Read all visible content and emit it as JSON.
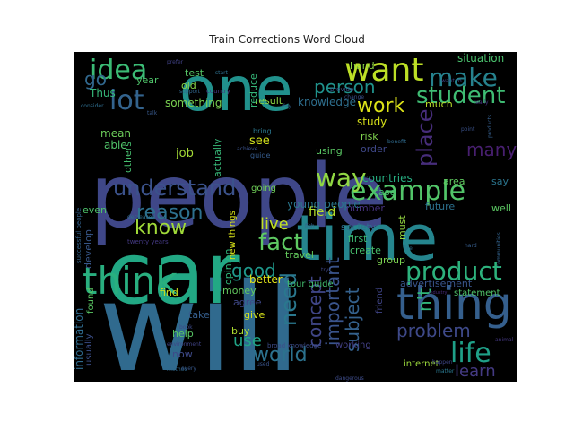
{
  "title": "Train Corrections Word Cloud",
  "chart_data": {
    "type": "wordcloud",
    "title": "Train Corrections Word Cloud",
    "words": [
      {
        "text": "people",
        "rank": 1.0,
        "color": "#3f4788"
      },
      {
        "text": "will",
        "rank": 0.98,
        "color": "#306a8e"
      },
      {
        "text": "car",
        "rank": 0.9,
        "color": "#22a884"
      },
      {
        "text": "time",
        "rank": 0.8,
        "color": "#25858e"
      },
      {
        "text": "one",
        "rank": 0.68,
        "color": "#21918c"
      },
      {
        "text": "thing",
        "rank": 0.5,
        "color": "#355f8d"
      },
      {
        "text": "think",
        "rank": 0.48,
        "color": "#29af7f"
      },
      {
        "text": "want",
        "rank": 0.42,
        "color": "#bddf26"
      },
      {
        "text": "idea",
        "rank": 0.38,
        "color": "#3bbb75"
      },
      {
        "text": "example",
        "rank": 0.38,
        "color": "#52c569"
      },
      {
        "text": "product",
        "rank": 0.38,
        "color": "#2db27d"
      },
      {
        "text": "make",
        "rank": 0.36,
        "color": "#26828e"
      },
      {
        "text": "student",
        "rank": 0.34,
        "color": "#3fbc73"
      },
      {
        "text": "lot",
        "rank": 0.34,
        "color": "#33638d"
      },
      {
        "text": "way",
        "rank": 0.34,
        "color": "#90d743"
      },
      {
        "text": "life",
        "rank": 0.34,
        "color": "#1fa088"
      },
      {
        "text": "understand",
        "rank": 0.32,
        "color": "#3b528b"
      },
      {
        "text": "fact",
        "rank": 0.32,
        "color": "#5ec962"
      },
      {
        "text": "place",
        "rank": 0.3,
        "color": "#472d7b"
      },
      {
        "text": "work",
        "rank": 0.3,
        "color": "#dde318"
      },
      {
        "text": "person",
        "rank": 0.3,
        "color": "#20928c"
      },
      {
        "text": "need",
        "rank": 0.3,
        "color": "#2a788e"
      },
      {
        "text": "problem",
        "rank": 0.28,
        "color": "#3e4989"
      },
      {
        "text": "know",
        "rank": 0.28,
        "color": "#a0da39"
      },
      {
        "text": "go",
        "rank": 0.26,
        "color": "#31688e"
      },
      {
        "text": "reason",
        "rank": 0.26,
        "color": "#2d708e"
      },
      {
        "text": "good",
        "rank": 0.26,
        "color": "#1f988b"
      },
      {
        "text": "concept",
        "rank": 0.26,
        "color": "#404688"
      },
      {
        "text": "important",
        "rank": 0.26,
        "color": "#3a548c"
      },
      {
        "text": "subject",
        "rank": 0.26,
        "color": "#34618d"
      },
      {
        "text": "learn",
        "rank": 0.26,
        "color": "#443a83"
      },
      {
        "text": "n't",
        "rank": 0.26,
        "color": "#32b67a"
      },
      {
        "text": "world",
        "rank": 0.26,
        "color": "#2c728e"
      },
      {
        "text": "use",
        "rank": 0.24,
        "color": "#20a486"
      },
      {
        "text": "live",
        "rank": 0.22,
        "color": "#c0df25"
      },
      {
        "text": "many",
        "rank": 0.22,
        "color": "#481f70"
      },
      {
        "text": "situation",
        "rank": 0.12,
        "color": "#4ac16d"
      },
      {
        "text": "field",
        "rank": 0.12,
        "color": "#b5de2b"
      },
      {
        "text": "advertisement",
        "rank": 0.12,
        "color": "#39558c"
      },
      {
        "text": "study",
        "rank": 0.12,
        "color": "#d8e219"
      },
      {
        "text": "better",
        "rank": 0.12,
        "color": "#e2e418"
      },
      {
        "text": "knowledge",
        "rank": 0.12,
        "color": "#2e6f8e"
      },
      {
        "text": "something",
        "rank": 0.12,
        "color": "#7ad151"
      },
      {
        "text": "countries",
        "rank": 0.12,
        "color": "#26ad81"
      },
      {
        "text": "young people",
        "rank": 0.12,
        "color": "#2a778e"
      },
      {
        "text": "information",
        "rank": 0.12,
        "color": "#2f6b8e"
      },
      {
        "text": "money",
        "rank": 0.1,
        "color": "#63cb5f"
      },
      {
        "text": "job",
        "rank": 0.1,
        "color": "#a5db36"
      },
      {
        "text": "see",
        "rank": 0.1,
        "color": "#d2e21b"
      },
      {
        "text": "mean",
        "rank": 0.1,
        "color": "#6ccd5a"
      },
      {
        "text": "able",
        "rank": 0.1,
        "color": "#50c46a"
      },
      {
        "text": "Thus",
        "rank": 0.1,
        "color": "#35b779"
      },
      {
        "text": "year",
        "rank": 0.1,
        "color": "#4fc46a"
      },
      {
        "text": "old",
        "rank": 0.1,
        "color": "#86d549"
      },
      {
        "text": "test",
        "rank": 0.1,
        "color": "#56c667"
      },
      {
        "text": "hand",
        "rank": 0.1,
        "color": "#8bd646"
      },
      {
        "text": "risk",
        "rank": 0.1,
        "color": "#7fd34e"
      },
      {
        "text": "much",
        "rank": 0.1,
        "color": "#b8de29"
      },
      {
        "text": "area",
        "rank": 0.1,
        "color": "#60ca60"
      },
      {
        "text": "well",
        "rank": 0.1,
        "color": "#5cc863"
      },
      {
        "text": "say",
        "rank": 0.1,
        "color": "#2b758e"
      },
      {
        "text": "case",
        "rank": 0.1,
        "color": "#44bf70"
      },
      {
        "text": "first",
        "rank": 0.1,
        "color": "#3dbc74"
      },
      {
        "text": "create",
        "rank": 0.1,
        "color": "#48c16e"
      },
      {
        "text": "group",
        "rank": 0.1,
        "color": "#7cd250"
      },
      {
        "text": "must",
        "rank": 0.1,
        "color": "#95d840"
      },
      {
        "text": "future",
        "rank": 0.1,
        "color": "#2c718e"
      },
      {
        "text": "number",
        "rank": 0.1,
        "color": "#46327e"
      },
      {
        "text": "society",
        "rank": 0.1,
        "color": "#2e6e8e"
      },
      {
        "text": "find",
        "rank": 0.1,
        "color": "#cde11d"
      },
      {
        "text": "help",
        "rank": 0.1,
        "color": "#58c765"
      },
      {
        "text": "take",
        "rank": 0.1,
        "color": "#355e8d"
      },
      {
        "text": "give",
        "rank": 0.1,
        "color": "#d5e21a"
      },
      {
        "text": "buy",
        "rank": 0.1,
        "color": "#addc30"
      },
      {
        "text": "now",
        "rank": 0.1,
        "color": "#3e4a89"
      },
      {
        "text": "even",
        "rank": 0.1,
        "color": "#4ec36b"
      },
      {
        "text": "develop",
        "rank": 0.1,
        "color": "#38588c"
      },
      {
        "text": "internet",
        "rank": 0.09,
        "color": "#9bd93c"
      },
      {
        "text": "result",
        "rank": 0.09,
        "color": "#8ed645"
      },
      {
        "text": "order",
        "rank": 0.09,
        "color": "#3f4889"
      },
      {
        "text": "travel",
        "rank": 0.09,
        "color": "#65cb5e"
      },
      {
        "text": "using",
        "rank": 0.09,
        "color": "#5ac864"
      },
      {
        "text": "others",
        "rank": 0.09,
        "color": "#46c06f"
      },
      {
        "text": "actually",
        "rank": 0.09,
        "color": "#37b878"
      },
      {
        "text": "opinion",
        "rank": 0.09,
        "color": "#30b57a"
      },
      {
        "text": "going",
        "rank": 0.08,
        "color": "#6fcf57"
      },
      {
        "text": "agree",
        "rank": 0.08,
        "color": "#3f4889"
      },
      {
        "text": "reduce",
        "rank": 0.08,
        "color": "#35b779"
      },
      {
        "text": "working",
        "rank": 0.08,
        "color": "#424086"
      },
      {
        "text": "friend",
        "rank": 0.08,
        "color": "#404588"
      },
      {
        "text": "statement",
        "rank": 0.08,
        "color": "#50c46a"
      },
      {
        "text": "tour guide",
        "rank": 0.07,
        "color": "#43bf71"
      },
      {
        "text": "new things",
        "rank": 0.07,
        "color": "#dae319"
      },
      {
        "text": "found",
        "rank": 0.07,
        "color": "#5ac864"
      },
      {
        "text": "usually",
        "rank": 0.07,
        "color": "#3c4f8a"
      },
      {
        "text": "bring",
        "rank": 0.06,
        "color": "#2a768e"
      },
      {
        "text": "guide",
        "rank": 0.06,
        "color": "#365c8d"
      },
      {
        "text": "country",
        "rank": 0.06,
        "color": "#453781"
      },
      {
        "text": "twenty years",
        "rank": 0.05,
        "color": "#443983"
      },
      {
        "text": "broad knowledge",
        "rank": 0.05,
        "color": "#3d4d8a"
      },
      {
        "text": "successful people",
        "rank": 0.05,
        "color": "#33628d"
      },
      {
        "text": "provide",
        "rank": 0.05,
        "color": "#39568c"
      },
      {
        "text": "really",
        "rank": 0.05,
        "color": "#46337f"
      },
      {
        "text": "point",
        "rank": 0.05,
        "color": "#3b528b"
      },
      {
        "text": "hard",
        "rank": 0.05,
        "color": "#365d8d"
      },
      {
        "text": "fish",
        "rank": 0.05,
        "color": "#33638d"
      },
      {
        "text": "support",
        "rank": 0.05,
        "color": "#31678e"
      },
      {
        "text": "start",
        "rank": 0.05,
        "color": "#2d708e"
      },
      {
        "text": "prefer",
        "rank": 0.05,
        "color": "#414287"
      },
      {
        "text": "change",
        "rank": 0.05,
        "color": "#3b528b"
      },
      {
        "text": "consider",
        "rank": 0.05,
        "color": "#2e6d8e"
      },
      {
        "text": "talk",
        "rank": 0.05,
        "color": "#38598c"
      },
      {
        "text": "benefit",
        "rank": 0.05,
        "color": "#2f6b8e"
      },
      {
        "text": "book",
        "rank": 0.05,
        "color": "#3e4a89"
      },
      {
        "text": "try",
        "rank": 0.05,
        "color": "#404688"
      },
      {
        "text": "day",
        "rank": 0.05,
        "color": "#34608d"
      },
      {
        "text": "fire",
        "rank": 0.05,
        "color": "#2c728e"
      },
      {
        "text": "used",
        "rank": 0.05,
        "color": "#3a548c"
      },
      {
        "text": "matter",
        "rank": 0.05,
        "color": "#2a778e"
      },
      {
        "text": "animal",
        "rank": 0.05,
        "color": "#453882"
      },
      {
        "text": "dangerous",
        "rank": 0.05,
        "color": "#3e4c8a"
      },
      {
        "text": "method",
        "rank": 0.05,
        "color": "#30698e"
      },
      {
        "text": "environment",
        "rank": 0.05,
        "color": "#414487"
      },
      {
        "text": "every",
        "rank": 0.05,
        "color": "#38588c"
      },
      {
        "text": "industry",
        "rank": 0.05,
        "color": "#472a7a"
      },
      {
        "text": "communities",
        "rank": 0.05,
        "color": "#33638d"
      },
      {
        "text": "happen",
        "rank": 0.05,
        "color": "#3f4788"
      },
      {
        "text": "decreased",
        "rank": 0.05,
        "color": "#2e6e8e"
      },
      {
        "text": "achieve",
        "rank": 0.05,
        "color": "#3b528b"
      },
      {
        "text": "products",
        "rank": 0.05,
        "color": "#355f8d"
      },
      {
        "text": "want to",
        "rank": 0.05,
        "color": "#404688"
      }
    ]
  }
}
